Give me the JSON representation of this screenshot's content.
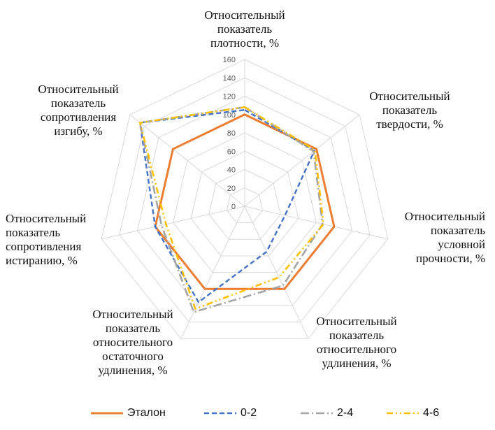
{
  "chart_data": {
    "type": "radar",
    "title": "",
    "axes": [
      [
        "Относительный",
        "показатель",
        "плотности, %"
      ],
      [
        "Относительный",
        "показатель",
        "твердости, %"
      ],
      [
        "Относительный",
        "показатель",
        "условной",
        "прочности, %"
      ],
      [
        "Относительный",
        "показатель",
        "относительного",
        "удлинения, %"
      ],
      [
        "Относительный",
        "показатель",
        "относительного",
        "остаточного",
        "удлинения, %"
      ],
      [
        "Относительный",
        "показатель",
        "сопротивления",
        "истиранию, %"
      ],
      [
        "Относительный",
        "показатель",
        "сопротивления",
        "изгибу, %"
      ]
    ],
    "rlim": [
      0,
      160
    ],
    "ticks": [
      0,
      20,
      40,
      60,
      80,
      100,
      120,
      140,
      160
    ],
    "series": [
      {
        "name": "Эталон",
        "color": "#ED7D31",
        "dash": "solid",
        "values": [
          100,
          100,
          100,
          100,
          100,
          100,
          100
        ]
      },
      {
        "name": "0-2",
        "color": "#4472C4",
        "dash": "dash",
        "values": [
          105,
          97,
          45,
          55,
          116,
          100,
          146
        ]
      },
      {
        "name": "2-4",
        "color": "#A5A5A5",
        "dash": "dashdot",
        "values": [
          108,
          96,
          87,
          96,
          128,
          93,
          146
        ]
      },
      {
        "name": "4-6",
        "color": "#FFC000",
        "dash": "dashdotdot",
        "values": [
          108,
          98,
          88,
          86,
          124,
          88,
          146
        ]
      }
    ],
    "legend_position": "bottom"
  }
}
